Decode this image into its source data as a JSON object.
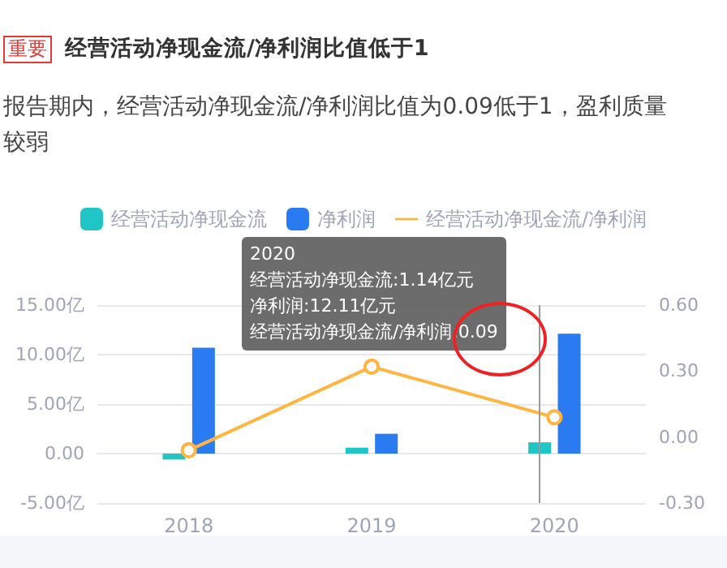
{
  "chart_data": {
    "type": "bar",
    "title": "经营活动净现金流/净利润比值低于1",
    "subtitle": "报告期内，经营活动净现金流/净利润比值为0.09低于1，盈利质量较弱",
    "annotations": [
      "重要",
      "2020",
      "经营活动净现金流:1.14亿元",
      "净利润:12.11亿元",
      "经营活动净现金流/净利润:0.09"
    ],
    "categories": [
      "2018",
      "2019",
      "2020"
    ],
    "series": [
      {
        "name": "经营活动净现金流",
        "color": "#20c6c6",
        "values": [
          -0.6,
          0.6,
          1.14
        ]
      },
      {
        "name": "净利润",
        "color": "#2a7af2",
        "values": [
          10.7,
          2.0,
          12.11
        ]
      },
      {
        "name": "经营活动净现金流/净利润",
        "type": "line",
        "axis": "y2",
        "color": "#ffb53f",
        "values": [
          -0.06,
          0.32,
          0.09
        ]
      }
    ],
    "ylim": [
      -5,
      15
    ],
    "yticks": [
      {
        "value": -5,
        "label": "-5.00亿"
      },
      {
        "value": 0,
        "label": "0.00"
      },
      {
        "value": 5,
        "label": "5.00亿"
      },
      {
        "value": 10,
        "label": "10.00亿"
      },
      {
        "value": 15,
        "label": "15.00亿"
      }
    ],
    "y2lim": [
      -0.3,
      0.6
    ],
    "y2ticks": [
      {
        "value": -0.3,
        "label": "-0.30"
      },
      {
        "value": 0,
        "label": "0.00"
      },
      {
        "value": 0.3,
        "label": "0.30"
      },
      {
        "value": 0.6,
        "label": "0.60"
      }
    ],
    "ref_lines": [
      {
        "axis": "x",
        "value": "2020",
        "color": "#999999"
      }
    ],
    "grid": "y",
    "legend": "top",
    "marker": "circle",
    "line_style": "solid"
  }
}
